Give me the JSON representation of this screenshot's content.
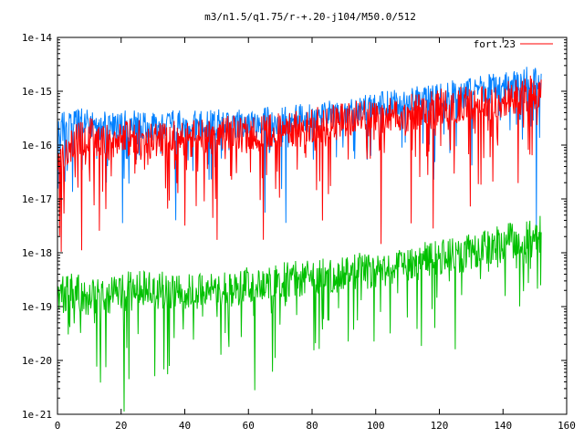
{
  "chart_data": {
    "type": "line",
    "title": "m3/n1.5/q1.75/r-+.20-j104/M50.0/512",
    "xlabel": "",
    "ylabel": "",
    "xlim": [
      0,
      160
    ],
    "ylim": [
      1e-21,
      1e-14
    ],
    "yscale": "log",
    "grid": false,
    "legend_position": "top-right",
    "xticks": [
      0,
      20,
      40,
      60,
      80,
      100,
      120,
      140,
      160
    ],
    "xtick_labels": [
      "0",
      "20",
      "40",
      "60",
      "80",
      "100",
      "120",
      "140",
      "160"
    ],
    "yticks": [
      1e-21,
      1e-20,
      1e-19,
      1e-18,
      1e-17,
      1e-16,
      1e-15,
      1e-14
    ],
    "ytick_labels": [
      "1e-21",
      "1e-20",
      "1e-19",
      "1e-18",
      "1e-17",
      "1e-16",
      "1e-15",
      "1e-14"
    ],
    "series": [
      {
        "name": "fort.23",
        "color": "#ff0000",
        "x": [
          0,
          5,
          10,
          15,
          20,
          25,
          30,
          35,
          40,
          45,
          50,
          55,
          60,
          65,
          70,
          75,
          80,
          85,
          90,
          95,
          100,
          105,
          110,
          115,
          120,
          125,
          130,
          135,
          140,
          145,
          150,
          152
        ],
        "y": [
          5e-17,
          1.2e-16,
          1.5e-16,
          1.1e-16,
          1.3e-16,
          1.4e-16,
          1.2e-16,
          1.5e-16,
          1.3e-16,
          1.4e-16,
          1.5e-16,
          1.6e-16,
          1.5e-16,
          1.7e-16,
          1.8e-16,
          2e-16,
          2.2e-16,
          2.5e-16,
          2.8e-16,
          3e-16,
          3.2e-16,
          3.5e-16,
          4e-16,
          4.5e-16,
          5e-16,
          5.5e-16,
          6e-16,
          6.5e-16,
          7e-16,
          8e-16,
          9e-16,
          1e-15
        ]
      },
      {
        "name": "",
        "color": "#0080ff",
        "x": [
          0,
          5,
          10,
          15,
          20,
          25,
          30,
          35,
          40,
          45,
          50,
          55,
          60,
          65,
          70,
          75,
          80,
          85,
          90,
          95,
          100,
          105,
          110,
          115,
          120,
          125,
          130,
          135,
          140,
          145,
          150,
          152
        ],
        "y": [
          2e-16,
          2.5e-16,
          2.8e-16,
          2.2e-16,
          2.3e-16,
          2.4e-16,
          2.2e-16,
          2.5e-16,
          2.3e-16,
          2.4e-16,
          2.5e-16,
          2.6e-16,
          2.5e-16,
          2.7e-16,
          2.8e-16,
          3e-16,
          3.3e-16,
          3.6e-16,
          4e-16,
          4.5e-16,
          5e-16,
          5.5e-16,
          6e-16,
          7e-16,
          8e-16,
          9e-16,
          1e-15,
          1.1e-15,
          1.2e-15,
          1.4e-15,
          1.6e-15,
          1.8e-15
        ]
      },
      {
        "name": "",
        "color": "#00c000",
        "x": [
          0,
          5,
          10,
          15,
          20,
          25,
          30,
          35,
          40,
          45,
          50,
          55,
          60,
          65,
          70,
          75,
          80,
          85,
          90,
          95,
          100,
          105,
          110,
          115,
          120,
          125,
          130,
          135,
          140,
          145,
          150,
          152
        ],
        "y": [
          1.5e-19,
          2e-19,
          1.5e-19,
          1.5e-19,
          2e-19,
          2.5e-19,
          2e-19,
          2e-19,
          1.8e-19,
          2e-19,
          2e-19,
          2.2e-19,
          2.5e-19,
          2.8e-19,
          3e-19,
          3.2e-19,
          3.5e-19,
          3.8e-19,
          4e-19,
          4.5e-19,
          5e-19,
          5.5e-19,
          6e-19,
          7e-19,
          8e-19,
          9e-19,
          1e-18,
          1.2e-18,
          1.5e-18,
          1.8e-18,
          2e-18,
          2.2e-18
        ]
      }
    ]
  }
}
